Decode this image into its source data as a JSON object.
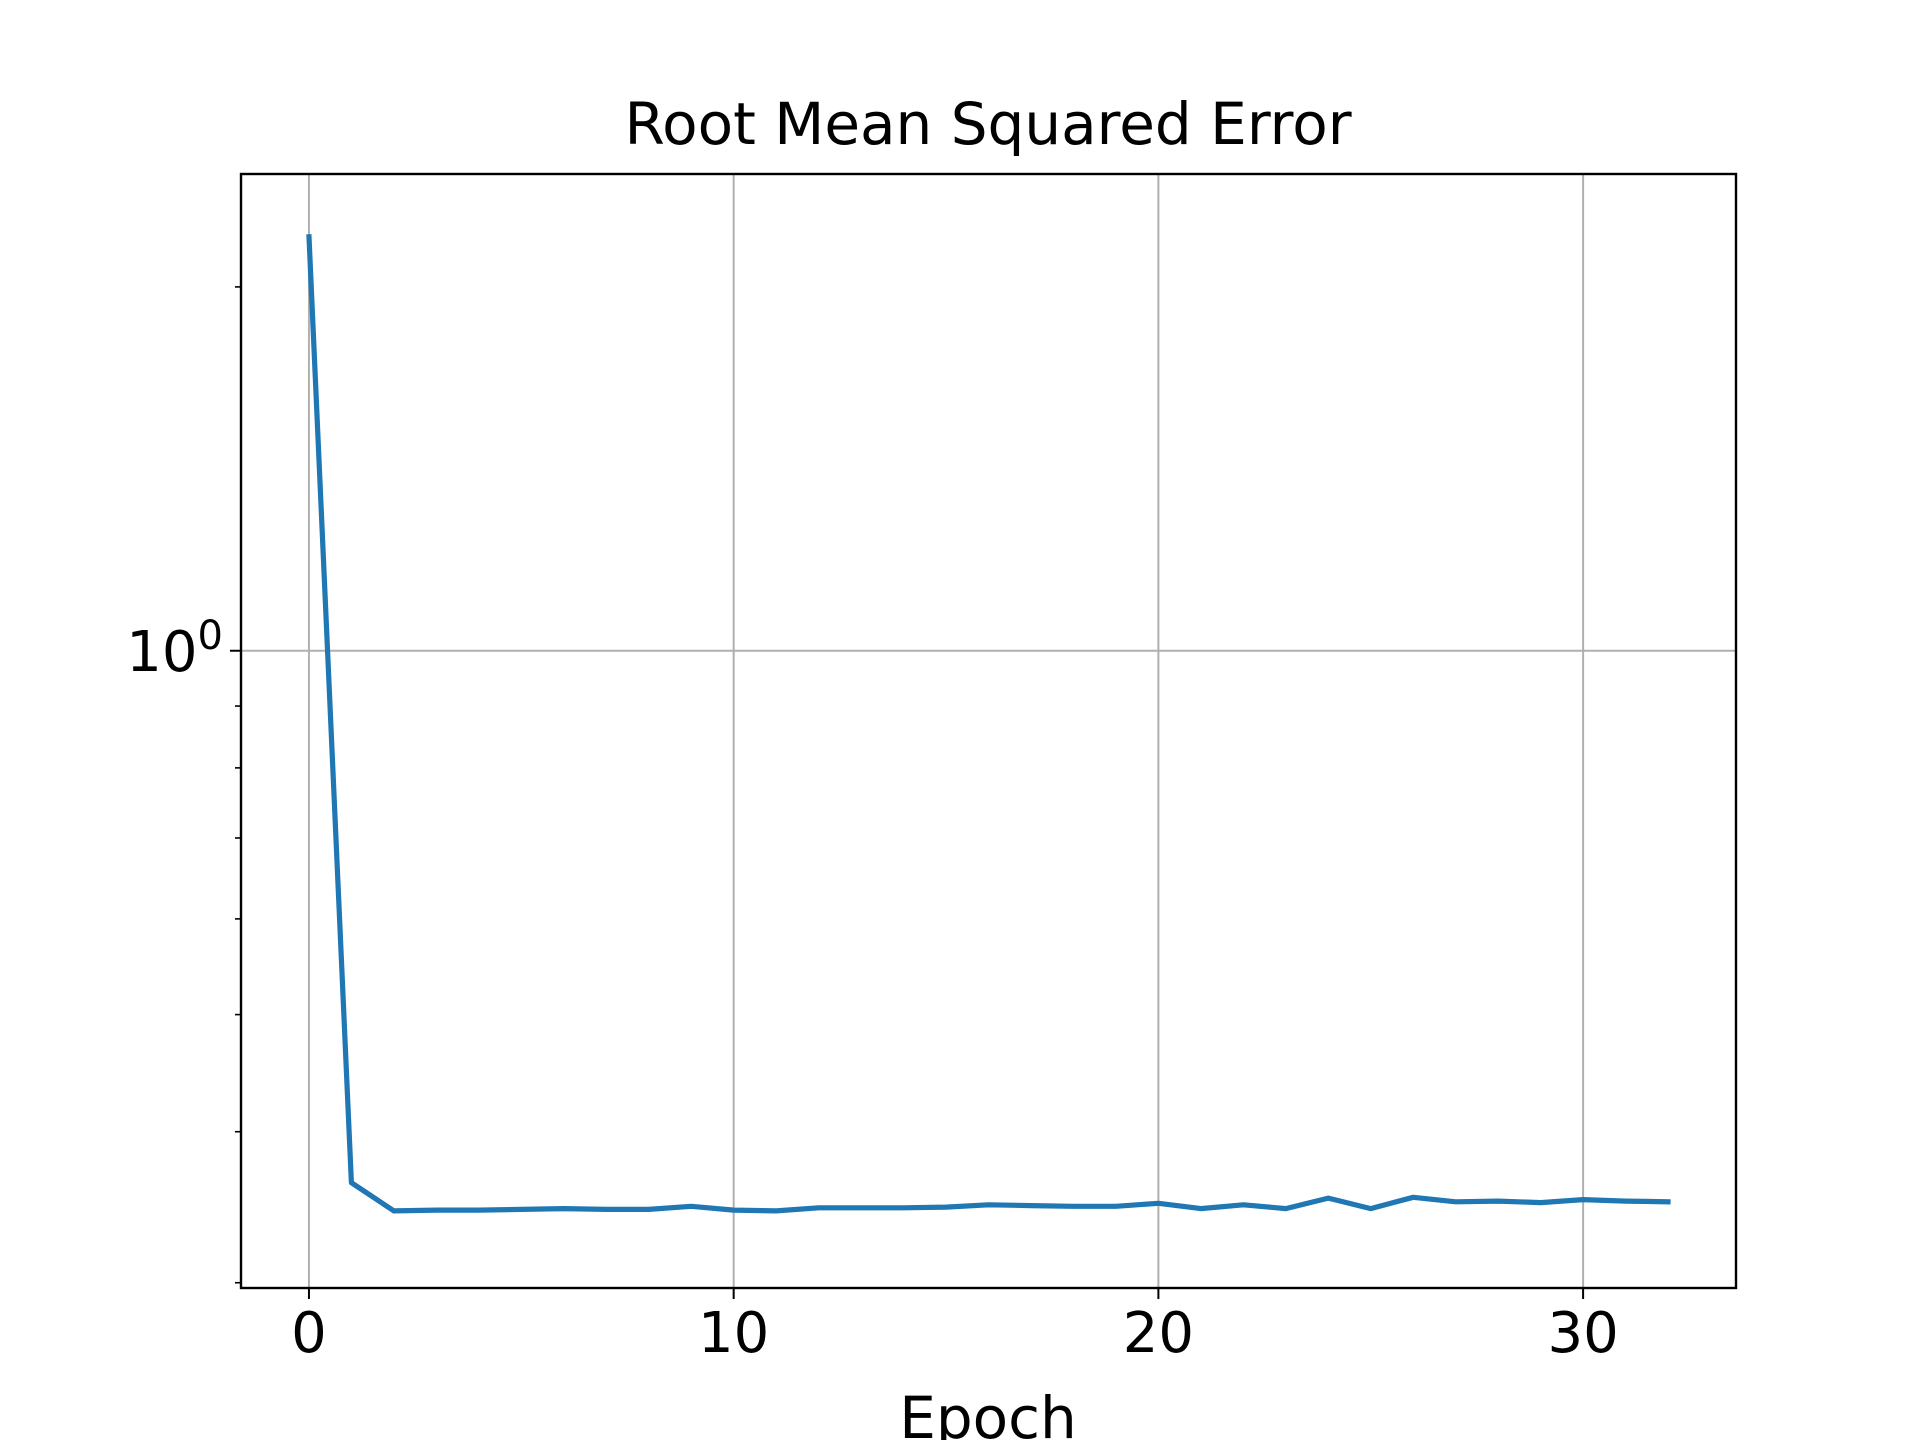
{
  "chart_data": {
    "type": "line",
    "title": "Root Mean Squared Error",
    "xlabel": "Epoch",
    "ylabel": "",
    "y_scale": "log",
    "grid": true,
    "legend": "none",
    "xlim": [
      -1.6,
      33.6
    ],
    "ylim": [
      0.297,
      2.48
    ],
    "x_ticks": [
      0,
      10,
      20,
      30
    ],
    "x_tick_labels": [
      "0",
      "10",
      "20",
      "30"
    ],
    "y_major_ticks": [
      1.0
    ],
    "y_major_tick_labels": [
      {
        "base": "10",
        "exp": "0"
      }
    ],
    "y_minor_ticks": [
      0.3,
      0.4,
      0.5,
      0.6,
      0.7,
      0.8,
      0.9,
      2.0
    ],
    "series": [
      {
        "color": "#1f77b4",
        "x": [
          0,
          1,
          2,
          3,
          4,
          5,
          6,
          7,
          8,
          9,
          10,
          11,
          12,
          13,
          14,
          15,
          16,
          17,
          18,
          19,
          20,
          21,
          22,
          23,
          24,
          25,
          26,
          27,
          28,
          29,
          30,
          31,
          32
        ],
        "y": [
          2.2,
          0.363,
          0.344,
          0.3445,
          0.3445,
          0.345,
          0.3455,
          0.345,
          0.345,
          0.347,
          0.3445,
          0.344,
          0.346,
          0.346,
          0.346,
          0.3465,
          0.348,
          0.3475,
          0.347,
          0.347,
          0.349,
          0.3455,
          0.348,
          0.3455,
          0.3525,
          0.3455,
          0.353,
          0.35,
          0.3505,
          0.3495,
          0.3515,
          0.3505,
          0.35
        ]
      }
    ]
  }
}
